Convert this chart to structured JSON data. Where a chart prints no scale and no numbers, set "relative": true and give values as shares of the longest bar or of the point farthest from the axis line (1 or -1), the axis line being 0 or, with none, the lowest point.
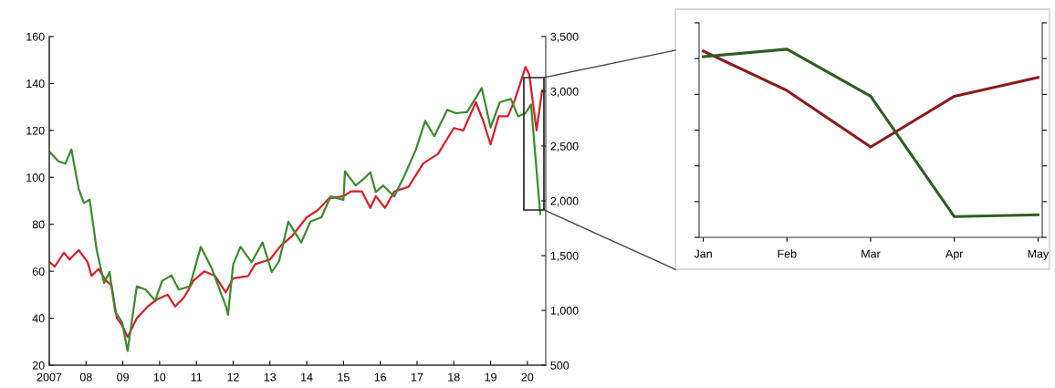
{
  "chart_data": [
    {
      "type": "line",
      "grid": false,
      "xlim": [
        2007,
        2020.5
      ],
      "xticks": [
        {
          "value": 2007,
          "label": "2007"
        },
        {
          "value": 2008,
          "label": "08"
        },
        {
          "value": 2009,
          "label": "09"
        },
        {
          "value": 2010,
          "label": "10"
        },
        {
          "value": 2011,
          "label": "11"
        },
        {
          "value": 2012,
          "label": "12"
        },
        {
          "value": 2013,
          "label": "13"
        },
        {
          "value": 2014,
          "label": "14"
        },
        {
          "value": 2015,
          "label": "15"
        },
        {
          "value": 2016,
          "label": "16"
        },
        {
          "value": 2017,
          "label": "17"
        },
        {
          "value": 2018,
          "label": "18"
        },
        {
          "value": 2019,
          "label": "19"
        },
        {
          "value": 2020,
          "label": "20"
        }
      ],
      "ylim": [
        20,
        160
      ],
      "yticks": [
        20,
        40,
        60,
        80,
        100,
        120,
        140,
        160
      ],
      "y2lim": [
        500,
        3500
      ],
      "y2ticks": [
        {
          "value": 500,
          "label": "500"
        },
        {
          "value": 1000,
          "label": "1,000"
        },
        {
          "value": 1500,
          "label": "1,500"
        },
        {
          "value": 2000,
          "label": "2,000"
        },
        {
          "value": 2500,
          "label": "2,500"
        },
        {
          "value": 3000,
          "label": "3,000"
        },
        {
          "value": 3500,
          "label": "3,500"
        }
      ],
      "series": [
        {
          "color": "#d4202c",
          "x": [
            2007.0,
            2007.15,
            2007.4,
            2007.55,
            2007.8,
            2008.04,
            2008.15,
            2008.34,
            2008.54,
            2008.69,
            2008.84,
            2008.98,
            2009.13,
            2009.38,
            2009.68,
            2009.93,
            2010.22,
            2010.42,
            2010.67,
            2010.92,
            2011.22,
            2011.51,
            2011.8,
            2012.0,
            2012.41,
            2012.6,
            2013.0,
            2013.3,
            2013.6,
            2014.0,
            2014.3,
            2014.6,
            2015.0,
            2015.2,
            2015.5,
            2015.73,
            2015.88,
            2016.13,
            2016.38,
            2016.77,
            2017.17,
            2017.57,
            2018.0,
            2018.26,
            2018.6,
            2018.8,
            2019.0,
            2019.22,
            2019.47,
            2019.66,
            2019.95,
            2020.05,
            2020.25,
            2020.4
          ],
          "values": [
            64,
            62,
            68,
            65,
            69,
            64,
            58,
            61,
            56,
            54,
            40,
            37,
            32,
            40,
            45,
            48,
            50,
            45,
            49,
            56,
            60,
            58,
            51,
            57,
            58,
            63,
            65,
            71,
            75,
            83,
            86,
            91,
            92,
            94,
            94,
            87,
            92,
            87,
            94,
            96,
            106,
            110,
            121,
            120,
            132,
            124,
            114,
            126,
            126,
            133,
            147,
            144,
            120,
            137
          ]
        },
        {
          "color": "#3c8a2e",
          "axis": "y2",
          "x": [
            2007.0,
            2007.25,
            2007.44,
            2007.6,
            2007.8,
            2007.94,
            2008.1,
            2008.29,
            2008.49,
            2008.64,
            2008.79,
            2008.98,
            2009.13,
            2009.38,
            2009.62,
            2009.88,
            2010.07,
            2010.32,
            2010.52,
            2010.82,
            2011.12,
            2011.41,
            2011.81,
            2011.86,
            2012.0,
            2012.2,
            2012.5,
            2012.8,
            2013.05,
            2013.25,
            2013.5,
            2013.85,
            2014.1,
            2014.4,
            2014.65,
            2015.0,
            2015.04,
            2015.33,
            2015.58,
            2015.73,
            2015.88,
            2016.08,
            2016.38,
            2016.67,
            2016.97,
            2017.22,
            2017.47,
            2017.82,
            2018.06,
            2018.36,
            2018.76,
            2019.0,
            2019.25,
            2019.55,
            2019.75,
            2019.95,
            2020.1,
            2020.35
          ],
          "values": [
            2450,
            2360,
            2340,
            2470,
            2110,
            1980,
            2010,
            1550,
            1250,
            1350,
            990,
            890,
            630,
            1220,
            1190,
            1090,
            1270,
            1320,
            1190,
            1220,
            1580,
            1390,
            1030,
            960,
            1420,
            1580,
            1440,
            1620,
            1350,
            1450,
            1810,
            1620,
            1810,
            1850,
            2040,
            2010,
            2270,
            2140,
            2210,
            2260,
            2080,
            2140,
            2040,
            2240,
            2470,
            2730,
            2590,
            2830,
            2800,
            2810,
            3030,
            2670,
            2900,
            2930,
            2770,
            2800,
            2880,
            1880
          ]
        }
      ]
    },
    {
      "type": "line",
      "relative": true,
      "grid": false,
      "tick_labels": "x",
      "categories": [
        "Jan",
        "Feb",
        "Mar",
        "Apr",
        "May"
      ],
      "series": [
        {
          "color": "#8a1c1c",
          "values": [
            0.99,
            0.78,
            0.48,
            0.75,
            0.85
          ]
        },
        {
          "color": "#2f5e22",
          "values": [
            0.96,
            1,
            0.75,
            0.11,
            0.12
          ]
        }
      ]
    }
  ]
}
